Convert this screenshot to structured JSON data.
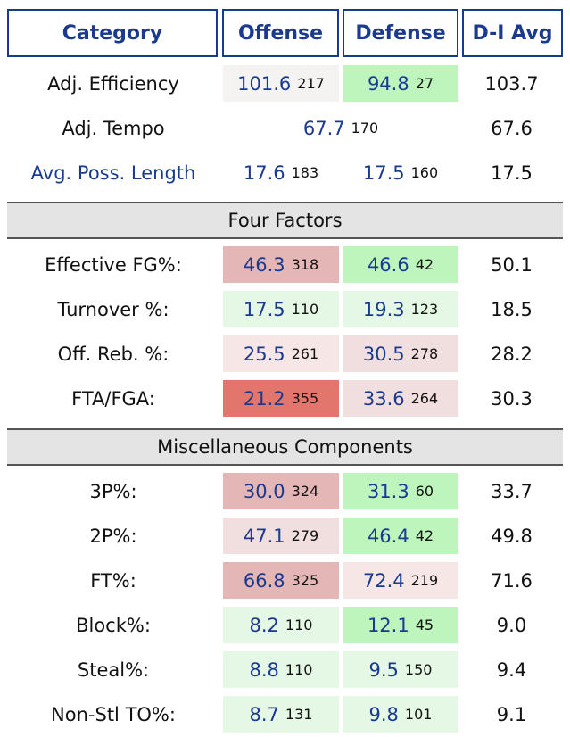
{
  "header": {
    "category": "Category",
    "offense": "Offense",
    "defense": "Defense",
    "avg": "D-I Avg"
  },
  "colors": {
    "header_text": "#1a3a8f",
    "white": "#ffffff",
    "greenLight": "#e5f7e5",
    "green": "#bdf5bd",
    "pinkLight": "#f7e6e6",
    "pink": "#f1dede",
    "pinkMid": "#e5b6b6",
    "red": "#e2756c",
    "neutral": "#f5f2f2"
  },
  "top_rows": [
    {
      "label": "Adj. Efficiency",
      "link": false,
      "off": "101.6",
      "off_rank": "217",
      "off_color": "neutral",
      "def": "94.8",
      "def_rank": "27",
      "def_color": "green",
      "avg": "103.7"
    },
    {
      "label": "Adj. Tempo",
      "link": false,
      "tempo": "67.7",
      "tempo_rank": "170",
      "avg": "67.6"
    },
    {
      "label": "Avg. Poss. Length",
      "link": true,
      "off": "17.6",
      "off_rank": "183",
      "off_color": "white",
      "def": "17.5",
      "def_rank": "160",
      "def_color": "white",
      "avg": "17.5"
    }
  ],
  "sections": [
    {
      "title": "Four Factors",
      "rows": [
        {
          "label": "Effective FG%:",
          "off": "46.3",
          "off_rank": "318",
          "off_color": "pinkMid",
          "def": "46.6",
          "def_rank": "42",
          "def_color": "green",
          "avg": "50.1"
        },
        {
          "label": "Turnover %:",
          "off": "17.5",
          "off_rank": "110",
          "off_color": "greenLight",
          "def": "19.3",
          "def_rank": "123",
          "def_color": "greenLight",
          "avg": "18.5"
        },
        {
          "label": "Off. Reb. %:",
          "off": "25.5",
          "off_rank": "261",
          "off_color": "pinkLight",
          "def": "30.5",
          "def_rank": "278",
          "def_color": "pink",
          "avg": "28.2"
        },
        {
          "label": "FTA/FGA:",
          "off": "21.2",
          "off_rank": "355",
          "off_color": "red",
          "def": "33.6",
          "def_rank": "264",
          "def_color": "pink",
          "avg": "30.3"
        }
      ]
    },
    {
      "title": "Miscellaneous Components",
      "rows": [
        {
          "label": "3P%:",
          "off": "30.0",
          "off_rank": "324",
          "off_color": "pinkMid",
          "def": "31.3",
          "def_rank": "60",
          "def_color": "green",
          "avg": "33.7"
        },
        {
          "label": "2P%:",
          "off": "47.1",
          "off_rank": "279",
          "off_color": "pink",
          "def": "46.4",
          "def_rank": "42",
          "def_color": "green",
          "avg": "49.8"
        },
        {
          "label": "FT%:",
          "off": "66.8",
          "off_rank": "325",
          "off_color": "pinkMid",
          "def": "72.4",
          "def_rank": "219",
          "def_color": "pinkLight",
          "avg": "71.6"
        },
        {
          "label": "Block%:",
          "off": "8.2",
          "off_rank": "110",
          "off_color": "greenLight",
          "def": "12.1",
          "def_rank": "45",
          "def_color": "green",
          "avg": "9.0"
        },
        {
          "label": "Steal%:",
          "off": "8.8",
          "off_rank": "110",
          "off_color": "greenLight",
          "def": "9.5",
          "def_rank": "150",
          "def_color": "greenLight",
          "avg": "9.4"
        },
        {
          "label": "Non-Stl TO%:",
          "off": "8.7",
          "off_rank": "131",
          "off_color": "greenLight",
          "def": "9.8",
          "def_rank": "101",
          "def_color": "greenLight",
          "avg": "9.1"
        }
      ]
    }
  ]
}
